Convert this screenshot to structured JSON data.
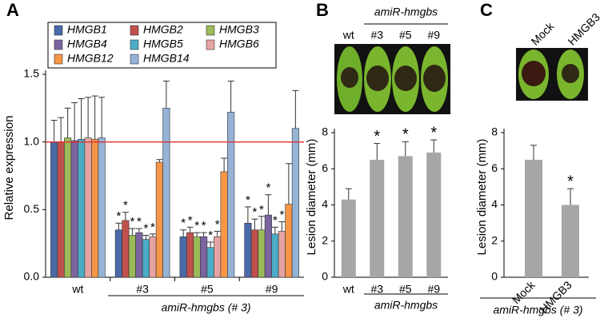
{
  "chart_data": [
    {
      "type": "bar",
      "panel_label": "A",
      "ylabel": "Relative expression",
      "categories": [
        "wt",
        "#3",
        "#5",
        "#9"
      ],
      "xlabel": "amiR-hmgbs (# 3)",
      "ylim": [
        0,
        1.5
      ],
      "yticks": [
        {
          "value": 0,
          "label": "0.0"
        },
        0.5,
        {
          "value": 1,
          "label": "1.0"
        },
        1.5
      ],
      "reference_line": 1,
      "reference_color": "#e03030",
      "series": [
        {
          "name": "HMGB1",
          "color": "#4a6aa8",
          "values": [
            1.0,
            0.35,
            0.3,
            0.4
          ],
          "errors": [
            0.16,
            0.05,
            0.05,
            0.12
          ],
          "annotations": [
            null,
            "*",
            "*",
            "*"
          ]
        },
        {
          "name": "HMGB2",
          "color": "#c0504d",
          "values": [
            1.0,
            0.42,
            0.33,
            0.35
          ],
          "errors": [
            0.18,
            0.06,
            0.04,
            0.08
          ],
          "annotations": [
            null,
            "*",
            "*",
            "*"
          ]
        },
        {
          "name": "HMGB3",
          "color": "#9bbb59",
          "values": [
            1.03,
            0.31,
            0.3,
            0.35
          ],
          "errors": [
            0.22,
            0.05,
            0.03,
            0.1
          ],
          "annotations": [
            null,
            "*",
            "*",
            "*"
          ]
        },
        {
          "name": "HMGB4",
          "color": "#7b63a0",
          "values": [
            1.01,
            0.33,
            0.3,
            0.46
          ],
          "errors": [
            0.28,
            0.03,
            0.03,
            0.15
          ],
          "annotations": [
            null,
            "*",
            "*",
            "*"
          ]
        },
        {
          "name": "HMGB5",
          "color": "#4bacc6",
          "values": [
            1.02,
            0.28,
            0.22,
            0.32
          ],
          "errors": [
            0.3,
            0.03,
            0.04,
            0.05
          ],
          "annotations": [
            null,
            "*",
            "*",
            "*"
          ]
        },
        {
          "name": "HMGB6",
          "color": "#e6a3a3",
          "values": [
            1.03,
            0.3,
            0.3,
            0.34
          ],
          "errors": [
            0.3,
            0.02,
            0.04,
            0.07
          ],
          "annotations": [
            null,
            "*",
            "*",
            "*"
          ]
        },
        {
          "name": "HMGB12",
          "color": "#f79646",
          "values": [
            1.02,
            0.85,
            0.78,
            0.54
          ],
          "errors": [
            0.32,
            0.02,
            0.1,
            0.3
          ],
          "annotations": [
            null,
            null,
            null,
            null
          ]
        },
        {
          "name": "HMGB14",
          "color": "#95b3d7",
          "values": [
            1.03,
            1.25,
            1.22,
            1.1
          ],
          "errors": [
            0.3,
            0.2,
            0.23,
            0.28
          ],
          "annotations": [
            null,
            null,
            null,
            null
          ]
        }
      ]
    },
    {
      "type": "bar",
      "panel_label": "B",
      "header": "amiR-hmgbs",
      "ylabel": "Lesion diameter (mm)",
      "categories": [
        "wt",
        "#3",
        "#5",
        "#9"
      ],
      "xlabel": "amiR-hmgbs",
      "color": "#a6a6a6",
      "values": [
        4.3,
        6.5,
        6.7,
        6.9
      ],
      "errors": [
        0.6,
        0.9,
        0.8,
        0.7
      ],
      "annotations": [
        null,
        "*",
        "*",
        "*"
      ],
      "ylim": [
        0,
        8
      ],
      "yticks": [
        0,
        2,
        4,
        6,
        8
      ]
    },
    {
      "type": "bar",
      "panel_label": "C",
      "ylabel": "Lesion diameter (mm)",
      "categories": [
        "Mock",
        "HMGB3"
      ],
      "xlabel": "amiR-hmgbs (# 3)",
      "color": "#a6a6a6",
      "values": [
        6.5,
        4.0
      ],
      "errors": [
        0.8,
        0.9
      ],
      "annotations": [
        null,
        "*"
      ],
      "ylim": [
        0,
        8
      ],
      "yticks": [
        0,
        2,
        4,
        6,
        8
      ]
    }
  ]
}
